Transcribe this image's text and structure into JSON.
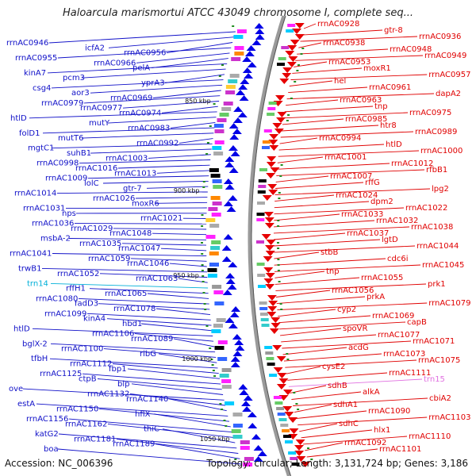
{
  "title": "Haloarcula marismortui ATCC 43049 chromosome I, complete seq...",
  "footer": {
    "accession": "Accession: NC_006396",
    "topology": "Topology: circular; Length: 3,131,724 bp; Genes: 3,186"
  },
  "colors": {
    "left_labels": "#1010c8",
    "right_labels": "#e00000",
    "trna": "#00b0d8",
    "pink": "#e070e0",
    "backbone": "#9a9a9a",
    "tick": "#1e8c1e"
  },
  "kbp_ticks": [
    "850 kbp",
    "900 kbp",
    "950 kbp",
    "1000 kbp",
    "1050 kbp"
  ],
  "left_labels": [
    "rrnAC0946",
    "icfA2",
    "rrnAC0956",
    "rrnAC0955",
    "rrnAC0966",
    "pelA",
    "kinA7",
    "pcm3",
    "yprA3",
    "csg4",
    "aor3",
    "rrnAC0969",
    "rrnAC0979",
    "rrnAC0977",
    "rrnAC0974",
    "htlD",
    "mutY",
    "rrnAC0983",
    "folD1",
    "mutT6",
    "rrnAC0992",
    "mgtC1",
    "suhB1",
    "rrnAC1003",
    "rrnAC0998",
    "rrnAC1016",
    "rrnAC1013",
    "rrnAC1009",
    "lolC",
    "gtr-7",
    "rrnAC1014",
    "rrnAC1026",
    "moxR6",
    "rrnAC1031",
    "nps",
    "rrnAC1021",
    "rrnAC1036",
    "rrnAC1029",
    "rrnAC1048",
    "msbA-2",
    "rrnAC1035",
    "rrnAC1047",
    "rrnAC1041",
    "rrnAC1059",
    "rrnAC1046",
    "trwB1",
    "rrnAC1052",
    "rrnAC1063",
    "trn14",
    "rffH1",
    "rrnAC1065",
    "rrnAC1080",
    "fadD3",
    "rrnAC1078",
    "rrnAC1099",
    "kinA4",
    "hbd1",
    "htlD",
    "rrnAC1106",
    "rrnAC1089",
    "bglX-2",
    "rrnAC1100",
    "ribG",
    "tfbH",
    "rrnAC1112",
    "fbp1",
    "rrnAC1125",
    "ctpB",
    "blp",
    "ove",
    "rrnAC1132",
    "rrnAC1140",
    "estA",
    "rrnAC1150",
    "hflX",
    "rrnAC1156",
    "rrnAC1162",
    "thiC",
    "katG2",
    "rrnAC1181",
    "rrnAC1189",
    "boa"
  ],
  "right_labels": [
    "rrnAC0928",
    "gtr-8",
    "rrnAC0936",
    "rrnAC0938",
    "rrnAC0948",
    "rrnAC0949",
    "rrnAC0953",
    "moxR1",
    "rrnAC0957",
    "hel",
    "rrnAC0961",
    "dapA2",
    "rrnAC0963",
    "tnp",
    "rrnAC0975",
    "rrnAC0985",
    "htr8",
    "rrnAC0989",
    "rrnAC0994",
    "htlD",
    "rrnAC1000",
    "rrnAC1001",
    "rrnAC1012",
    "rfbB1",
    "rrnAC1007",
    "rffG",
    "lpg2",
    "rrnAC1024",
    "dpm2",
    "rrnAC1022",
    "rrnAC1033",
    "rrnAC1032",
    "rrnAC1038",
    "rrnAC1037",
    "lgtD",
    "rrnAC1044",
    "stbB",
    "cdc6i",
    "rrnAC1045",
    "tnp",
    "rrnAC1055",
    "prk1",
    "rrnAC1056",
    "prkA",
    "rrnAC1079",
    "cyp2",
    "rrnAC1069",
    "capB",
    "spoVR",
    "rrnAC1077",
    "rrnAC1071",
    "acdG",
    "rrnAC1073",
    "rrnAC1075",
    "cysE2",
    "rrnAC1111",
    "trn15",
    "sdhB",
    "alkA",
    "cbiA2",
    "sdhA1",
    "rrnAC1090",
    "rrnAC1103",
    "sdhC",
    "hlx1",
    "rrnAC1110",
    "rrnAC1092",
    "rrnAC1101"
  ]
}
